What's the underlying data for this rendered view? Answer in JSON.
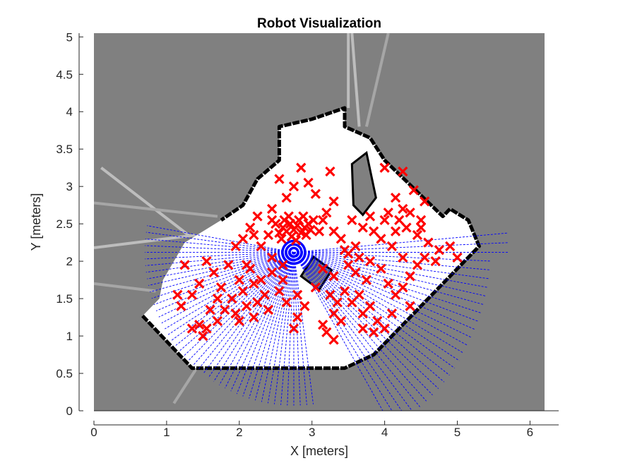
{
  "chart_data": {
    "type": "scatter",
    "title": "Robot Visualization",
    "xlabel": "X [meters]",
    "ylabel": "Y [meters]",
    "xlim": [
      0,
      6.2
    ],
    "ylim": [
      0,
      5.05
    ],
    "xticks": [
      0,
      1,
      2,
      3,
      4,
      5,
      6
    ],
    "yticks": [
      0,
      0.5,
      1,
      1.5,
      2,
      2.5,
      3,
      3.5,
      4,
      4.5,
      5
    ],
    "xticklabels": [
      "0",
      "1",
      "2",
      "3",
      "4",
      "5",
      "6"
    ],
    "yticklabels": [
      "0",
      "0.5",
      "1",
      "1.5",
      "2",
      "2.5",
      "3",
      "3.5",
      "4",
      "4.5",
      "5"
    ],
    "grid": false,
    "legend": "none",
    "occupancy_map": {
      "background_color": "#808080",
      "free_color": "#ffffff",
      "wall_color": "#000000",
      "free_region": [
        [
          0.67,
          1.27
        ],
        [
          1.35,
          0.57
        ],
        [
          3.45,
          0.57
        ],
        [
          3.85,
          0.75
        ],
        [
          5.3,
          2.2
        ],
        [
          5.15,
          2.55
        ],
        [
          4.9,
          2.7
        ],
        [
          4.8,
          2.6
        ],
        [
          4.0,
          3.35
        ],
        [
          3.8,
          3.65
        ],
        [
          3.45,
          3.8
        ],
        [
          3.45,
          4.05
        ],
        [
          3.0,
          3.9
        ],
        [
          2.55,
          3.8
        ],
        [
          2.55,
          3.35
        ],
        [
          2.25,
          3.1
        ],
        [
          2.05,
          2.75
        ],
        [
          1.75,
          2.55
        ],
        [
          1.25,
          2.25
        ],
        [
          0.95,
          1.75
        ],
        [
          0.9,
          1.5
        ]
      ],
      "obstacle_square": [
        [
          2.85,
          1.8
        ],
        [
          3.1,
          1.62
        ],
        [
          3.27,
          1.88
        ],
        [
          3.02,
          2.06
        ]
      ],
      "pillar": [
        [
          3.55,
          3.3
        ],
        [
          3.75,
          3.45
        ],
        [
          3.88,
          2.85
        ],
        [
          3.7,
          2.62
        ],
        [
          3.57,
          2.75
        ]
      ],
      "wall_path": [
        [
          0.67,
          1.27
        ],
        [
          1.35,
          0.57
        ],
        [
          3.45,
          0.57
        ],
        [
          3.85,
          0.75
        ],
        [
          5.3,
          2.2
        ],
        [
          5.15,
          2.55
        ],
        [
          4.9,
          2.7
        ],
        [
          4.8,
          2.6
        ],
        [
          4.0,
          3.35
        ],
        [
          3.8,
          3.65
        ],
        [
          3.45,
          3.8
        ],
        [
          3.45,
          4.05
        ],
        [
          3.0,
          3.9
        ],
        [
          2.55,
          3.8
        ],
        [
          2.55,
          3.35
        ],
        [
          2.25,
          3.1
        ],
        [
          2.05,
          2.75
        ],
        [
          1.75,
          2.55
        ]
      ],
      "gray_streaks": [
        [
          [
            0.1,
            3.25
          ],
          [
            1.3,
            2.35
          ]
        ],
        [
          [
            0.0,
            2.78
          ],
          [
            1.7,
            2.6
          ]
        ],
        [
          [
            0.0,
            2.18
          ],
          [
            1.4,
            2.35
          ]
        ],
        [
          [
            0.0,
            1.7
          ],
          [
            0.85,
            1.6
          ]
        ],
        [
          [
            3.55,
            5.05
          ],
          [
            3.65,
            3.8
          ]
        ],
        [
          [
            4.05,
            5.05
          ],
          [
            3.75,
            3.8
          ]
        ],
        [
          [
            3.5,
            5.05
          ],
          [
            3.5,
            4.05
          ]
        ],
        [
          [
            1.1,
            0.1
          ],
          [
            1.4,
            0.55
          ]
        ]
      ]
    },
    "robot": {
      "x": 2.75,
      "y": 2.12,
      "color": "#0000ff"
    },
    "scan_rays": {
      "color": "#0000ff",
      "origin": [
        2.75,
        2.12
      ],
      "arcs": [
        [
          170,
          278,
          2.05
        ],
        [
          -60,
          0,
          2.7
        ],
        [
          0,
          5,
          2.95
        ]
      ]
    },
    "particles": {
      "color": "#ff0000",
      "marker": "x",
      "points": [
        [
          2.6,
          2.45
        ],
        [
          2.65,
          2.4
        ],
        [
          2.7,
          2.5
        ],
        [
          2.75,
          2.42
        ],
        [
          2.8,
          2.48
        ],
        [
          2.85,
          2.38
        ],
        [
          2.9,
          2.45
        ],
        [
          2.95,
          2.5
        ],
        [
          2.55,
          2.38
        ],
        [
          2.62,
          2.55
        ],
        [
          2.72,
          2.33
        ],
        [
          2.82,
          2.55
        ],
        [
          2.92,
          2.35
        ],
        [
          2.68,
          2.6
        ],
        [
          2.78,
          2.28
        ],
        [
          2.88,
          2.6
        ],
        [
          2.58,
          2.3
        ],
        [
          2.98,
          2.42
        ],
        [
          2.5,
          2.5
        ],
        [
          3.02,
          2.55
        ],
        [
          2.4,
          2.35
        ],
        [
          2.45,
          2.55
        ],
        [
          3.1,
          2.4
        ],
        [
          3.15,
          2.55
        ],
        [
          3.3,
          2.4
        ],
        [
          3.4,
          2.3
        ],
        [
          2.3,
          2.2
        ],
        [
          2.2,
          2.35
        ],
        [
          3.5,
          2.1
        ],
        [
          3.6,
          2.2
        ],
        [
          2.85,
          3.25
        ],
        [
          2.75,
          3.0
        ],
        [
          2.65,
          2.85
        ],
        [
          2.95,
          3.05
        ],
        [
          3.05,
          2.9
        ],
        [
          3.25,
          3.2
        ],
        [
          2.55,
          3.1
        ],
        [
          3.3,
          2.8
        ],
        [
          3.2,
          2.65
        ],
        [
          2.45,
          2.7
        ],
        [
          2.25,
          2.6
        ],
        [
          2.15,
          2.45
        ],
        [
          2.05,
          2.3
        ],
        [
          1.95,
          2.2
        ],
        [
          2.15,
          1.9
        ],
        [
          1.85,
          1.95
        ],
        [
          2.0,
          1.75
        ],
        [
          1.75,
          1.65
        ],
        [
          1.9,
          1.5
        ],
        [
          2.05,
          1.6
        ],
        [
          2.2,
          1.7
        ],
        [
          1.7,
          1.5
        ],
        [
          1.8,
          1.35
        ],
        [
          1.95,
          1.3
        ],
        [
          2.1,
          1.4
        ],
        [
          2.25,
          1.45
        ],
        [
          2.35,
          1.55
        ],
        [
          1.6,
          1.35
        ],
        [
          1.7,
          1.2
        ],
        [
          1.55,
          1.1
        ],
        [
          1.45,
          1.15
        ],
        [
          1.35,
          1.1
        ],
        [
          1.5,
          1.0
        ],
        [
          2.0,
          1.2
        ],
        [
          2.2,
          1.25
        ],
        [
          2.4,
          1.35
        ],
        [
          2.3,
          1.75
        ],
        [
          2.45,
          1.85
        ],
        [
          2.1,
          1.95
        ],
        [
          1.65,
          1.85
        ],
        [
          1.55,
          2.0
        ],
        [
          1.45,
          1.7
        ],
        [
          1.35,
          1.55
        ],
        [
          1.2,
          1.4
        ],
        [
          1.15,
          1.55
        ],
        [
          1.25,
          1.95
        ],
        [
          2.55,
          1.6
        ],
        [
          2.65,
          1.45
        ],
        [
          2.8,
          1.55
        ],
        [
          2.9,
          1.4
        ],
        [
          2.75,
          1.1
        ],
        [
          2.6,
          1.75
        ],
        [
          2.45,
          2.05
        ],
        [
          2.6,
          1.95
        ],
        [
          3.25,
          1.55
        ],
        [
          3.35,
          1.45
        ],
        [
          3.45,
          1.6
        ],
        [
          3.3,
          1.3
        ],
        [
          3.4,
          1.2
        ],
        [
          3.2,
          1.05
        ],
        [
          3.3,
          0.95
        ],
        [
          3.15,
          1.15
        ],
        [
          3.55,
          1.45
        ],
        [
          3.7,
          1.3
        ],
        [
          3.8,
          1.4
        ],
        [
          3.65,
          1.55
        ],
        [
          3.75,
          1.75
        ],
        [
          3.6,
          1.85
        ],
        [
          3.5,
          1.95
        ],
        [
          3.45,
          2.15
        ],
        [
          3.65,
          2.05
        ],
        [
          3.8,
          2.0
        ],
        [
          3.95,
          1.9
        ],
        [
          4.05,
          1.7
        ],
        [
          4.15,
          1.55
        ],
        [
          4.25,
          1.65
        ],
        [
          4.35,
          1.8
        ],
        [
          4.45,
          1.95
        ],
        [
          4.25,
          2.05
        ],
        [
          4.1,
          2.2
        ],
        [
          3.95,
          2.3
        ],
        [
          3.85,
          2.4
        ],
        [
          4.0,
          2.55
        ],
        [
          4.2,
          2.55
        ],
        [
          4.35,
          2.65
        ],
        [
          4.5,
          2.55
        ],
        [
          4.45,
          2.35
        ],
        [
          4.6,
          2.25
        ],
        [
          4.75,
          2.15
        ],
        [
          4.9,
          2.2
        ],
        [
          5.0,
          2.05
        ],
        [
          4.7,
          2.0
        ],
        [
          4.55,
          2.05
        ],
        [
          4.3,
          2.45
        ],
        [
          4.15,
          2.4
        ],
        [
          4.25,
          2.7
        ],
        [
          4.05,
          2.65
        ],
        [
          3.8,
          2.6
        ],
        [
          3.55,
          2.55
        ],
        [
          3.7,
          2.45
        ],
        [
          4.0,
          3.25
        ],
        [
          4.25,
          3.2
        ],
        [
          4.4,
          2.95
        ],
        [
          4.55,
          2.8
        ],
        [
          4.15,
          2.85
        ],
        [
          4.35,
          1.4
        ],
        [
          4.1,
          1.3
        ],
        [
          3.9,
          1.2
        ],
        [
          3.7,
          1.1
        ],
        [
          4.0,
          1.1
        ],
        [
          3.3,
          1.8
        ],
        [
          3.15,
          1.9
        ],
        [
          3.05,
          1.65
        ],
        [
          2.8,
          1.25
        ],
        [
          3.85,
          1.05
        ],
        [
          4.5,
          2.45
        ]
      ]
    }
  }
}
